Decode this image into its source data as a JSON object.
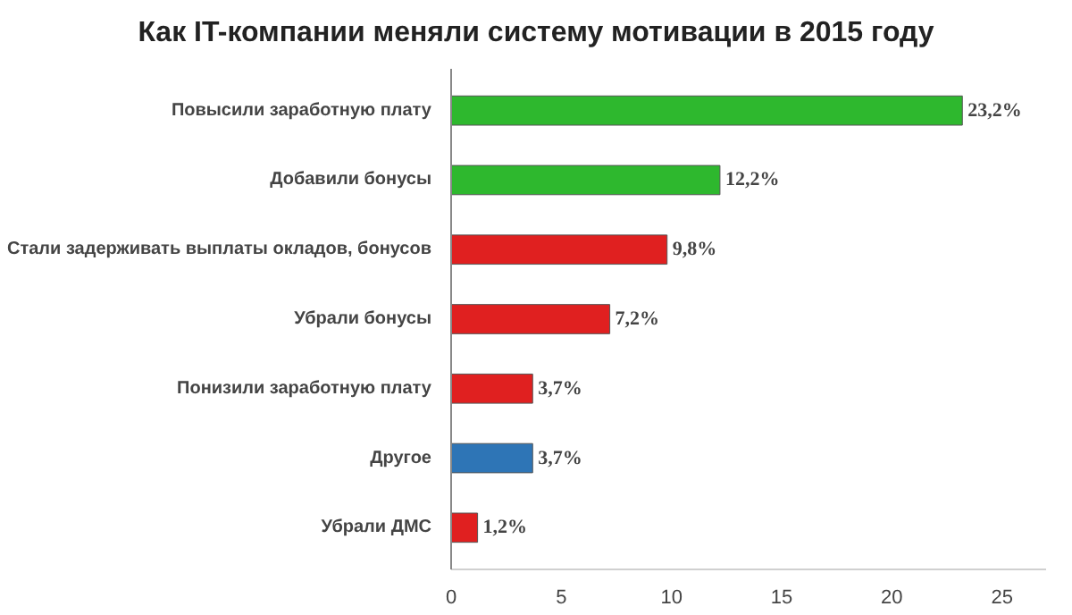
{
  "chart_data": {
    "type": "bar",
    "orientation": "horizontal",
    "title": "Как  IT-компании меняли систему мотивации в 2015 году",
    "categories": [
      "Повысили заработную плату",
      "Добавили бонусы",
      "Стали задерживать выплаты окладов, бонусов",
      "Убрали бонусы",
      "Понизили заработную плату",
      "Другое",
      "Убрали ДМС"
    ],
    "values": [
      23.2,
      12.2,
      9.8,
      7.2,
      3.7,
      3.7,
      1.2
    ],
    "colors": [
      "#2eb82e",
      "#2eb82e",
      "#e02020",
      "#e02020",
      "#e02020",
      "#2e75b6",
      "#e02020"
    ],
    "value_labels": [
      "23,2%",
      "12,2%",
      "9,8%",
      "7,2%",
      "3,7%",
      "3,7%",
      "1,2%"
    ],
    "xlim": [
      0,
      27
    ],
    "xticks": [
      0,
      5,
      10,
      15,
      20,
      25
    ],
    "grid": false
  }
}
